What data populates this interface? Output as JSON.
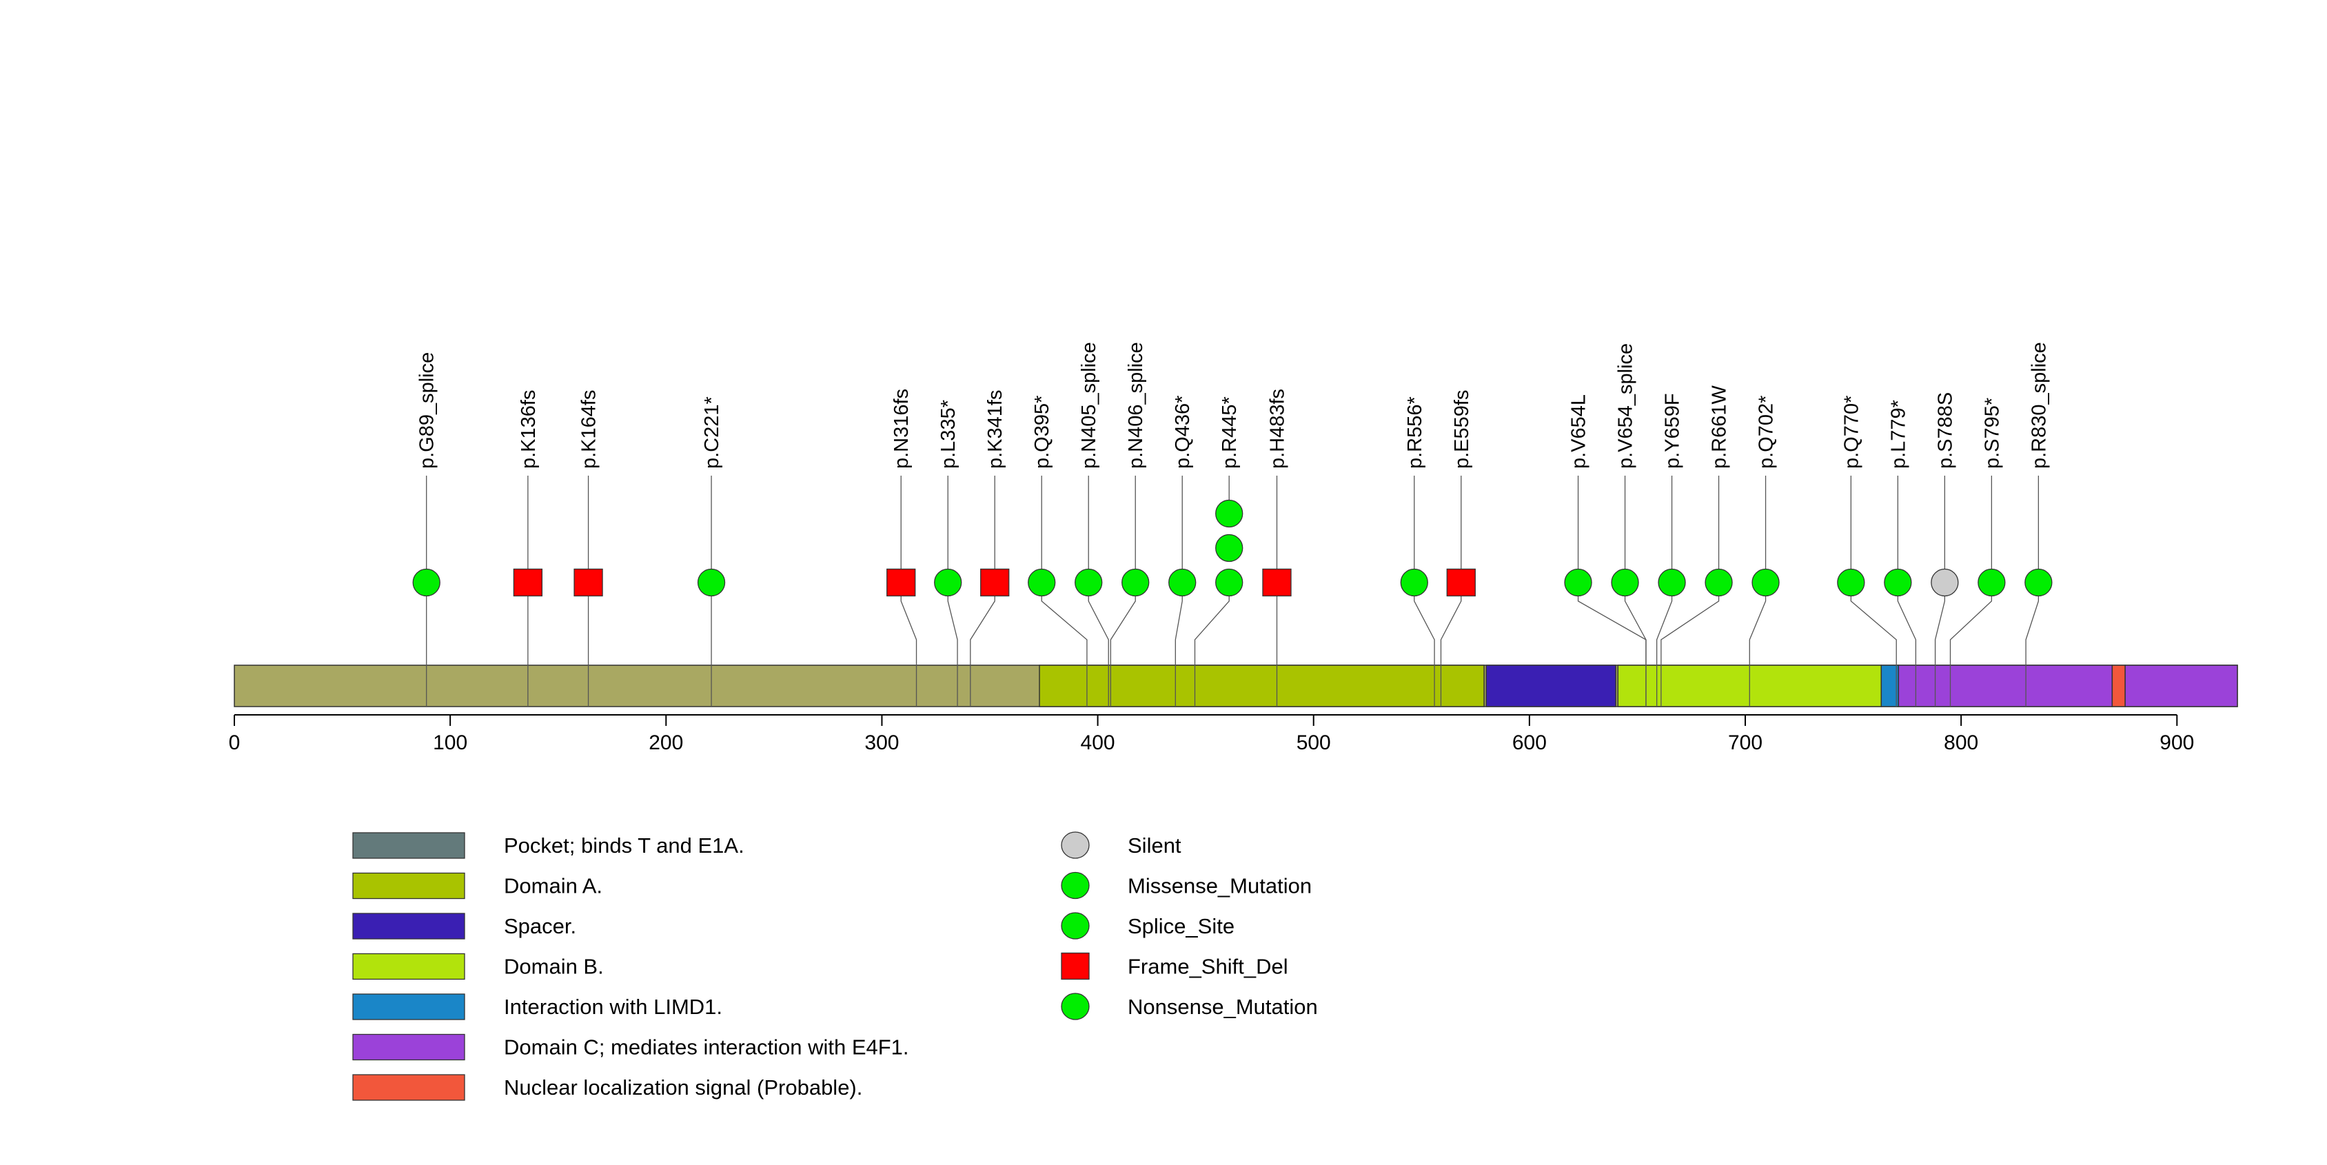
{
  "protein": {
    "length": 928,
    "axis_ticks": [
      0,
      100,
      200,
      300,
      400,
      500,
      600,
      700,
      800,
      900
    ]
  },
  "colors": {
    "protein_base": "#a9a862",
    "domain_a": "#a9c300",
    "spacer": "#3a1fb3",
    "domain_b": "#b2e30c",
    "limd1": "#1a86c8",
    "domain_c": "#9b42d9",
    "nls": "#f2573b",
    "pocket": "#637a7b",
    "silent": "#cccccc",
    "missense": "#00ee00",
    "frameshift": "#ff0000",
    "stroke": "#333333"
  },
  "domains": [
    {
      "name": "Domain A.",
      "start": 373,
      "end": 579,
      "color": "#a9c300"
    },
    {
      "name": "Spacer.",
      "start": 580,
      "end": 640,
      "color": "#3a1fb3"
    },
    {
      "name": "Domain B.",
      "start": 641,
      "end": 763,
      "color": "#b2e30c"
    },
    {
      "name": "Interaction with LIMD1.",
      "start": 763,
      "end": 771,
      "color": "#1a86c8"
    },
    {
      "name": "Domain C; mediates interaction with E4F1.",
      "start": 771,
      "end": 870,
      "color": "#9b42d9"
    },
    {
      "name": "Nuclear localization signal (Probable).",
      "start": 870,
      "end": 876,
      "color": "#f2573b"
    },
    {
      "name": "Domain C; mediates interaction with E4F1.",
      "start": 876,
      "end": 928,
      "color": "#9b42d9"
    }
  ],
  "mutations": [
    {
      "label": "p.G89_splice",
      "position": 89,
      "type": "Splice_Site",
      "count": 1
    },
    {
      "label": "p.K136fs",
      "position": 136,
      "type": "Frame_Shift_Del",
      "count": 1
    },
    {
      "label": "p.K164fs",
      "position": 164,
      "type": "Frame_Shift_Del",
      "count": 1
    },
    {
      "label": "p.C221*",
      "position": 221,
      "type": "Nonsense_Mutation",
      "count": 1
    },
    {
      "label": "p.N316fs",
      "position": 316,
      "type": "Frame_Shift_Del",
      "count": 1
    },
    {
      "label": "p.L335*",
      "position": 335,
      "type": "Nonsense_Mutation",
      "count": 1
    },
    {
      "label": "p.K341fs",
      "position": 341,
      "type": "Frame_Shift_Del",
      "count": 1
    },
    {
      "label": "p.Q395*",
      "position": 395,
      "type": "Nonsense_Mutation",
      "count": 1
    },
    {
      "label": "p.N405_splice",
      "position": 405,
      "type": "Splice_Site",
      "count": 1
    },
    {
      "label": "p.N406_splice",
      "position": 406,
      "type": "Splice_Site",
      "count": 1
    },
    {
      "label": "p.Q436*",
      "position": 436,
      "type": "Nonsense_Mutation",
      "count": 1
    },
    {
      "label": "p.R445*",
      "position": 445,
      "type": "Nonsense_Mutation",
      "count": 3
    },
    {
      "label": "p.H483fs",
      "position": 483,
      "type": "Frame_Shift_Del",
      "count": 1
    },
    {
      "label": "p.R556*",
      "position": 556,
      "type": "Nonsense_Mutation",
      "count": 1
    },
    {
      "label": "p.E559fs",
      "position": 559,
      "type": "Frame_Shift_Del",
      "count": 1
    },
    {
      "label": "p.V654L",
      "position": 654,
      "type": "Missense_Mutation",
      "count": 1
    },
    {
      "label": "p.V654_splice",
      "position": 654,
      "type": "Splice_Site",
      "count": 1
    },
    {
      "label": "p.Y659F",
      "position": 659,
      "type": "Missense_Mutation",
      "count": 1
    },
    {
      "label": "p.R661W",
      "position": 661,
      "type": "Missense_Mutation",
      "count": 1
    },
    {
      "label": "p.Q702*",
      "position": 702,
      "type": "Nonsense_Mutation",
      "count": 1
    },
    {
      "label": "p.Q770*",
      "position": 770,
      "type": "Nonsense_Mutation",
      "count": 1
    },
    {
      "label": "p.L779*",
      "position": 779,
      "type": "Nonsense_Mutation",
      "count": 1
    },
    {
      "label": "p.S788S",
      "position": 788,
      "type": "Silent",
      "count": 1
    },
    {
      "label": "p.S795*",
      "position": 795,
      "type": "Nonsense_Mutation",
      "count": 1
    },
    {
      "label": "p.R830_splice",
      "position": 830,
      "type": "Splice_Site",
      "count": 1
    }
  ],
  "legend_domains": [
    {
      "label": "Pocket; binds T and E1A.",
      "color": "#637a7b"
    },
    {
      "label": "Domain A.",
      "color": "#a9c300"
    },
    {
      "label": "Spacer.",
      "color": "#3a1fb3"
    },
    {
      "label": "Domain B.",
      "color": "#b2e30c"
    },
    {
      "label": "Interaction with LIMD1.",
      "color": "#1a86c8"
    },
    {
      "label": "Domain C; mediates interaction with E4F1.",
      "color": "#9b42d9"
    },
    {
      "label": "Nuclear localization signal (Probable).",
      "color": "#f2573b"
    }
  ],
  "legend_mutations": [
    {
      "label": "Silent",
      "shape": "circle",
      "color": "#cccccc"
    },
    {
      "label": "Missense_Mutation",
      "shape": "circle",
      "color": "#00ee00"
    },
    {
      "label": "Splice_Site",
      "shape": "circle",
      "color": "#00ee00"
    },
    {
      "label": "Frame_Shift_Del",
      "shape": "square",
      "color": "#ff0000"
    },
    {
      "label": "Nonsense_Mutation",
      "shape": "circle",
      "color": "#00ee00"
    }
  ]
}
